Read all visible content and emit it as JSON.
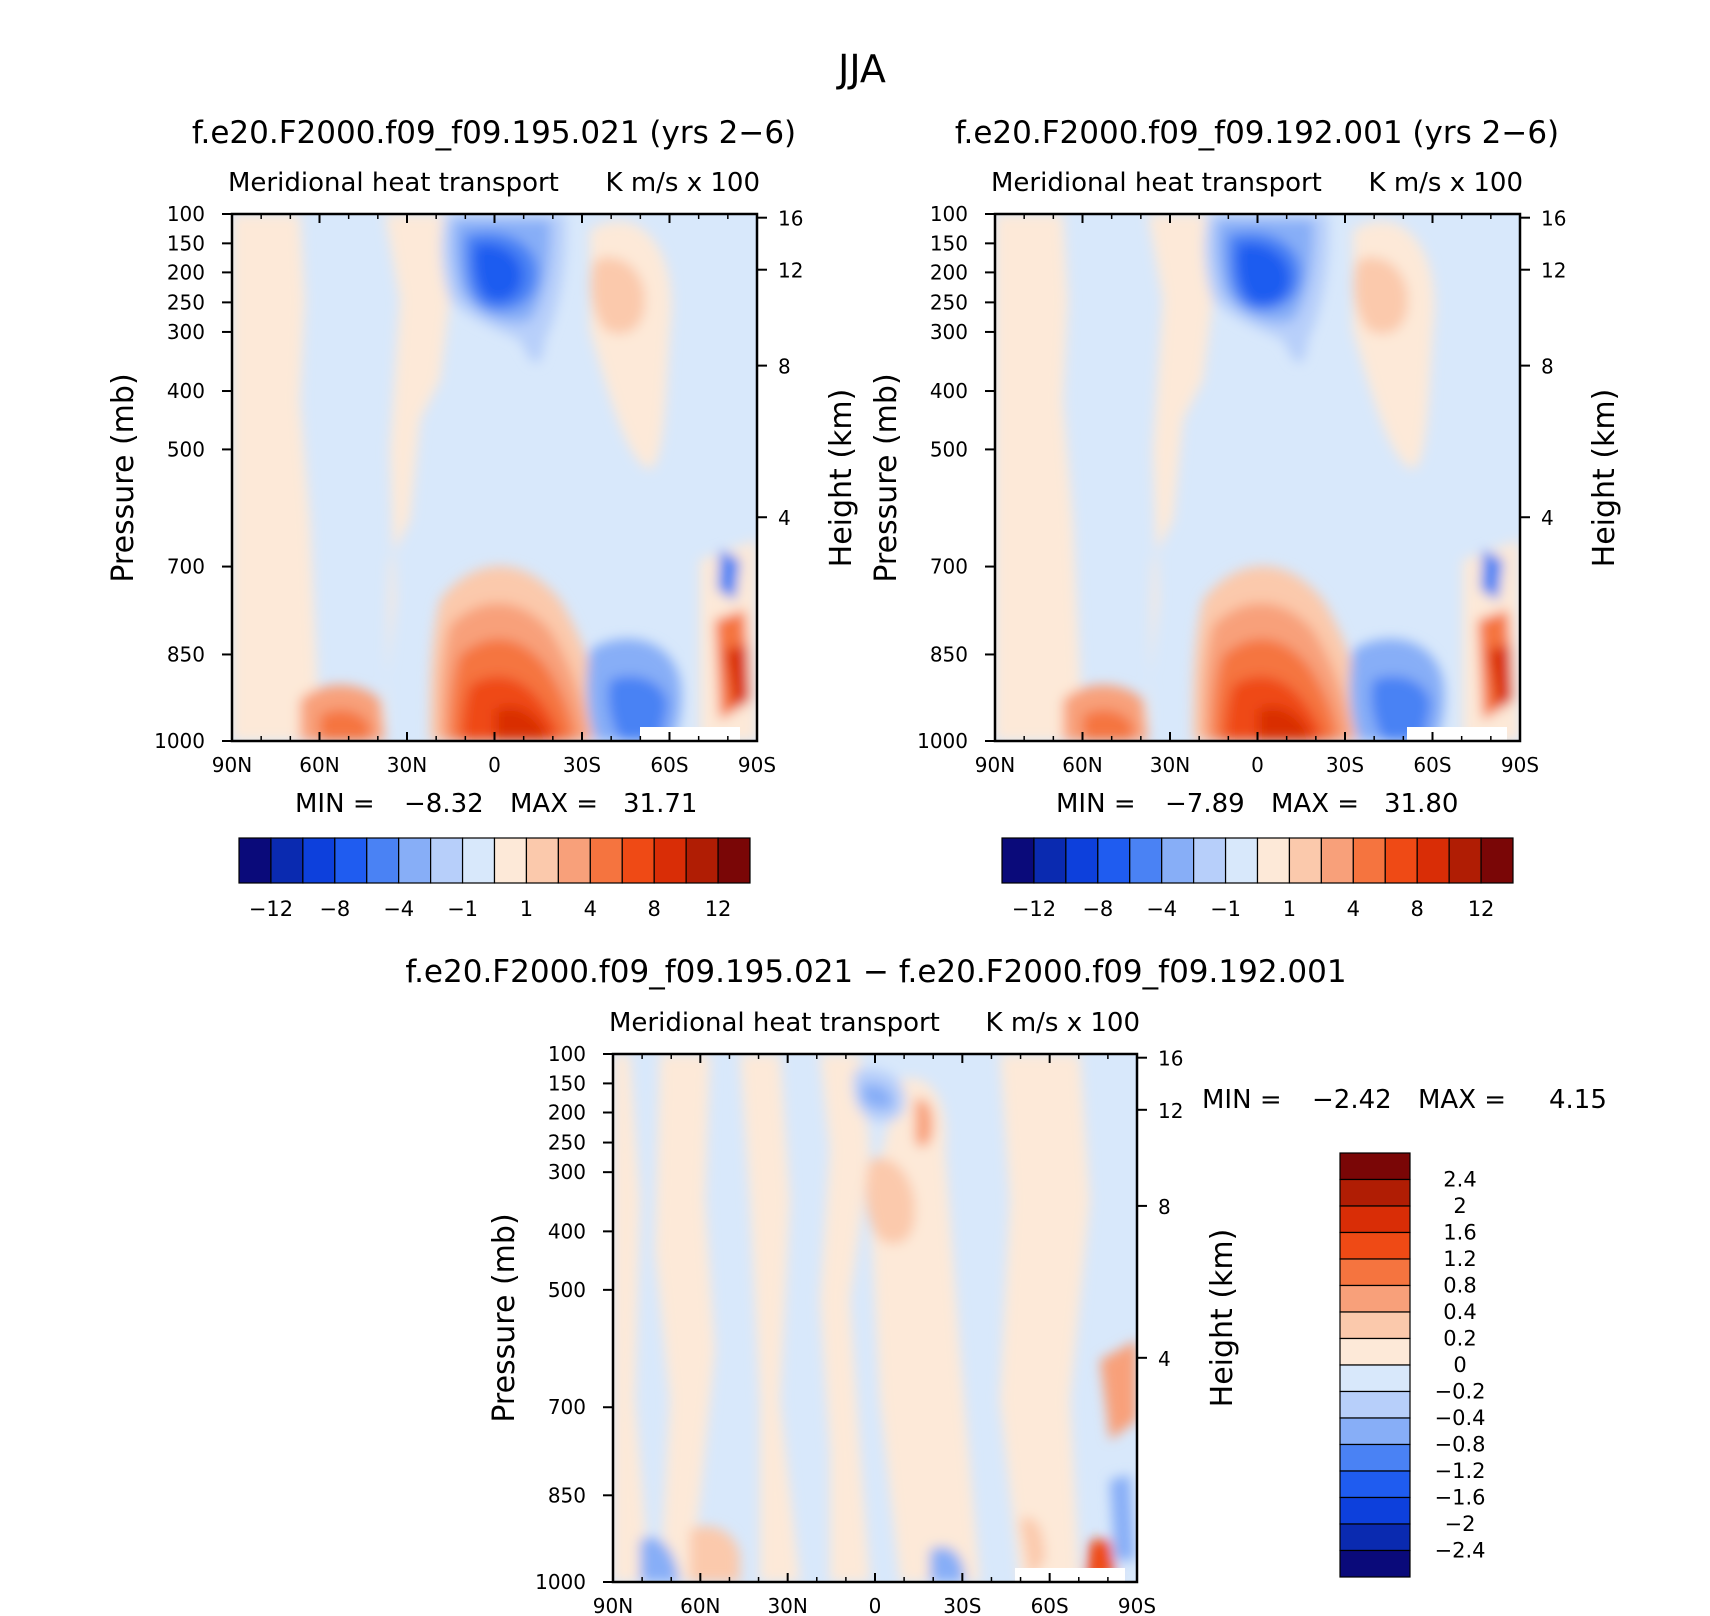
{
  "figure": {
    "title": "JJA"
  },
  "colors": {
    "main_levels": [
      "#0a0a7a",
      "#0a2ab0",
      "#0d40dc",
      "#1f5cf0",
      "#4a82f4",
      "#87aef7",
      "#b7cffa",
      "#d8e8fb",
      "#fde9d8",
      "#fbc9ac",
      "#f8a07a",
      "#f5743f",
      "#ef4a15",
      "#d92d06",
      "#b01d04",
      "#7a0606"
    ],
    "diff_levels": [
      "#0a0a7a",
      "#0a2ab0",
      "#0d40dc",
      "#1f5cf0",
      "#4a82f4",
      "#87aef7",
      "#b7cffa",
      "#d8e8fb",
      "#fde9d8",
      "#fbc9ac",
      "#f8a07a",
      "#f5743f",
      "#ef4a15",
      "#d92d06",
      "#b01d04",
      "#7a0606"
    ]
  },
  "chart_data": [
    {
      "type": "heatmap",
      "title": "f.e20.F2000.f09_f09.195.021 (yrs 2−6)",
      "left_subtitle": "Meridional heat transport",
      "right_subtitle": "K m/s x 100",
      "ylabel": "Pressure (mb)",
      "y2label": "Height (km)",
      "xticks": [
        "90N",
        "60N",
        "30N",
        "0",
        "30S",
        "60S",
        "90S"
      ],
      "yticks": [
        "100",
        "150",
        "200",
        "250",
        "300",
        "400",
        "500",
        "700",
        "850",
        "1000"
      ],
      "y2ticks": [
        "16",
        "12",
        "8",
        "4"
      ],
      "stats": {
        "min_label": "MIN =",
        "min": "−8.32",
        "max_label": "MAX =",
        "max": "31.71"
      },
      "colorbar": {
        "orientation": "horizontal",
        "labels": [
          "−12",
          "−8",
          "−4",
          "−1",
          "1",
          "4",
          "8",
          "12"
        ]
      }
    },
    {
      "type": "heatmap",
      "title": "f.e20.F2000.f09_f09.192.001 (yrs 2−6)",
      "left_subtitle": "Meridional heat transport",
      "right_subtitle": "K m/s x 100",
      "ylabel": "Pressure (mb)",
      "y2label": "Height (km)",
      "xticks": [
        "90N",
        "60N",
        "30N",
        "0",
        "30S",
        "60S",
        "90S"
      ],
      "yticks": [
        "100",
        "150",
        "200",
        "250",
        "300",
        "400",
        "500",
        "700",
        "850",
        "1000"
      ],
      "y2ticks": [
        "16",
        "12",
        "8",
        "4"
      ],
      "stats": {
        "min_label": "MIN =",
        "min": "−7.89",
        "max_label": "MAX =",
        "max": "31.80"
      },
      "colorbar": {
        "orientation": "horizontal",
        "labels": [
          "−12",
          "−8",
          "−4",
          "−1",
          "1",
          "4",
          "8",
          "12"
        ]
      }
    },
    {
      "type": "heatmap",
      "title": "f.e20.F2000.f09_f09.195.021 − f.e20.F2000.f09_f09.192.001",
      "left_subtitle": "Meridional heat transport",
      "right_subtitle": "K m/s x 100",
      "ylabel": "Pressure (mb)",
      "y2label": "Height (km)",
      "xticks": [
        "90N",
        "60N",
        "30N",
        "0",
        "30S",
        "60S",
        "90S"
      ],
      "yticks": [
        "100",
        "150",
        "200",
        "250",
        "300",
        "400",
        "500",
        "700",
        "850",
        "1000"
      ],
      "y2ticks": [
        "16",
        "12",
        "8",
        "4"
      ],
      "stats": {
        "min_label": "MIN =",
        "min": "−2.42",
        "max_label": "MAX =",
        "max": "4.15"
      },
      "colorbar": {
        "orientation": "vertical",
        "labels": [
          "2.4",
          "2",
          "1.6",
          "1.2",
          "0.8",
          "0.4",
          "0.2",
          "0",
          "−0.2",
          "−0.4",
          "−0.8",
          "−1.2",
          "−1.6",
          "−2",
          "−2.4"
        ]
      }
    }
  ]
}
